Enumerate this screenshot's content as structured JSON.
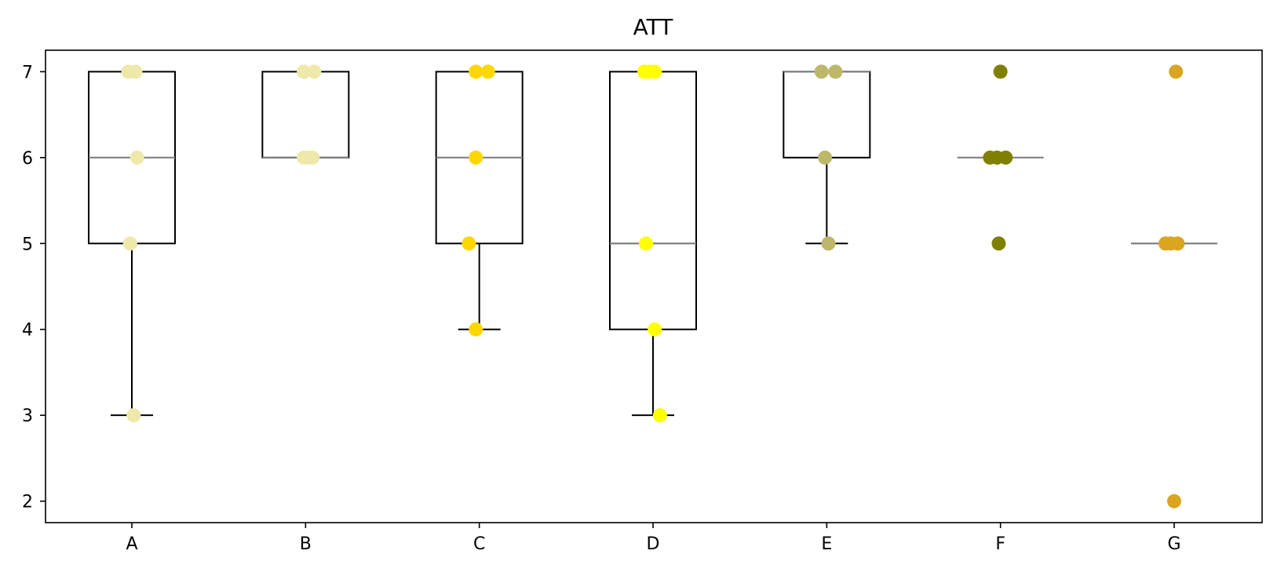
{
  "chart_data": {
    "type": "box",
    "title": "ATT",
    "xlabel": "",
    "ylabel": "",
    "categories": [
      "A",
      "B",
      "C",
      "D",
      "E",
      "F",
      "G"
    ],
    "ylim": [
      1.75,
      7.25
    ],
    "yticks": [
      2,
      3,
      4,
      5,
      6,
      7
    ],
    "grid": false,
    "series": [
      {
        "category": "A",
        "color": "#eee8aa",
        "q1": 5,
        "median": 6,
        "q3": 7,
        "whisker_low": 3,
        "whisker_high": 7,
        "points": [
          [
            -0.02,
            7
          ],
          [
            0.02,
            7
          ],
          [
            0.03,
            6
          ],
          [
            -0.01,
            5
          ],
          [
            0.01,
            3
          ]
        ]
      },
      {
        "category": "B",
        "color": "#eee8aa",
        "q1": 6,
        "median": 6,
        "q3": 7,
        "whisker_low": 6,
        "whisker_high": 7,
        "points": [
          [
            -0.01,
            7
          ],
          [
            0.05,
            7
          ],
          [
            -0.01,
            6
          ],
          [
            0.02,
            6
          ],
          [
            0.04,
            6
          ]
        ]
      },
      {
        "category": "C",
        "color": "#ffd700",
        "q1": 5,
        "median": 6,
        "q3": 7,
        "whisker_low": 4,
        "whisker_high": 7,
        "points": [
          [
            -0.02,
            7
          ],
          [
            0.05,
            7
          ],
          [
            -0.02,
            6
          ],
          [
            -0.06,
            5
          ],
          [
            -0.02,
            4
          ]
        ]
      },
      {
        "category": "D",
        "color": "#ffff00",
        "q1": 4,
        "median": 5,
        "q3": 7,
        "whisker_low": 3,
        "whisker_high": 7,
        "points": [
          [
            -0.05,
            7
          ],
          [
            -0.02,
            7
          ],
          [
            0.01,
            7
          ],
          [
            -0.04,
            5
          ],
          [
            0.01,
            4
          ],
          [
            0.04,
            3
          ]
        ]
      },
      {
        "category": "E",
        "color": "#bdb76b",
        "q1": 6,
        "median": 7,
        "q3": 7,
        "whisker_low": 5,
        "whisker_high": 7,
        "points": [
          [
            -0.03,
            7
          ],
          [
            0.05,
            7
          ],
          [
            -0.01,
            6
          ],
          [
            0.01,
            5
          ]
        ]
      },
      {
        "category": "F",
        "color": "#808000",
        "q1": 6,
        "median": 6,
        "q3": 6,
        "whisker_low": 6,
        "whisker_high": 6,
        "points": [
          [
            0.0,
            7
          ],
          [
            -0.06,
            6
          ],
          [
            -0.02,
            6
          ],
          [
            0.03,
            6
          ],
          [
            -0.01,
            5
          ]
        ]
      },
      {
        "category": "G",
        "color": "#daa520",
        "q1": 5,
        "median": 5,
        "q3": 5,
        "whisker_low": 5,
        "whisker_high": 5,
        "points": [
          [
            0.01,
            7
          ],
          [
            -0.05,
            5
          ],
          [
            -0.02,
            5
          ],
          [
            0.02,
            5
          ],
          [
            0.0,
            2
          ]
        ]
      }
    ]
  }
}
